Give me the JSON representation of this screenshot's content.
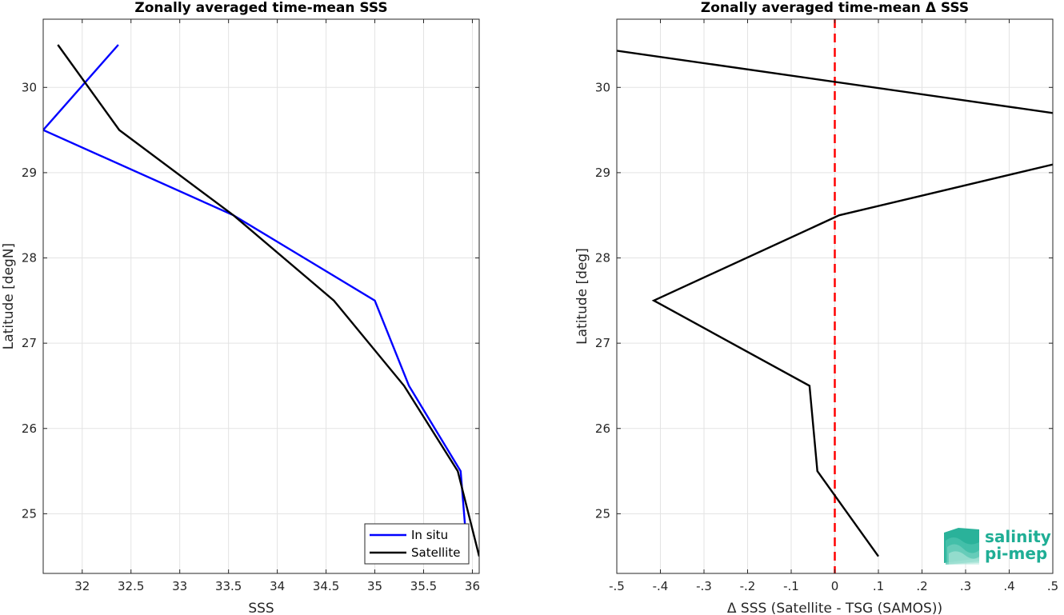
{
  "chart_data": [
    {
      "type": "line",
      "title": "Zonally averaged time-mean SSS",
      "xlabel": "SSS",
      "ylabel": "Latitude [degN]",
      "xlim": [
        31.6,
        36.07
      ],
      "ylim": [
        24.3,
        30.8
      ],
      "xticks": [
        32,
        32.5,
        33,
        33.5,
        34,
        34.5,
        35,
        35.5,
        36
      ],
      "yticks": [
        25,
        26,
        27,
        28,
        29,
        30
      ],
      "grid": true,
      "legend": "bottom-right",
      "series": [
        {
          "name": "In situ",
          "color": "#0000ff",
          "x": [
            32.37,
            31.6,
            33.55,
            35.0,
            35.35,
            35.88,
            35.95
          ],
          "y": [
            30.5,
            29.5,
            28.5,
            27.5,
            26.5,
            25.5,
            24.5
          ]
        },
        {
          "name": "Satellite",
          "color": "#000000",
          "x": [
            31.75,
            32.38,
            33.55,
            34.58,
            35.3,
            35.85,
            36.07
          ],
          "y": [
            30.5,
            29.5,
            28.5,
            27.5,
            26.5,
            25.5,
            24.5
          ]
        }
      ]
    },
    {
      "type": "line",
      "title": "Zonally averaged time-mean Δ SSS",
      "xlabel": "Δ SSS (Satellite - TSG (SAMOS))",
      "ylabel": "Latitude [deg]",
      "xlim": [
        -0.5,
        0.5
      ],
      "ylim": [
        24.3,
        30.8
      ],
      "xticks": [
        -0.5,
        -0.4,
        -0.3,
        -0.2,
        -0.1,
        0,
        0.1,
        0.2,
        0.3,
        0.4,
        0.5
      ],
      "yticks": [
        25,
        26,
        27,
        28,
        29,
        30
      ],
      "grid": true,
      "reference_line": {
        "x": 0,
        "color": "#ff0000",
        "style": "dashed"
      },
      "series": [
        {
          "color": "#000000",
          "x": [
            -0.5,
            0.5
          ],
          "y": [
            30.43,
            29.7
          ]
        },
        {
          "color": "#000000",
          "x": [
            0.52,
            0.01,
            -0.415,
            -0.058,
            -0.04,
            0.1
          ],
          "y": [
            29.12,
            28.5,
            27.5,
            26.5,
            25.5,
            24.5
          ]
        }
      ]
    }
  ],
  "logo": {
    "line1": "salinity",
    "line2": "pi-mep",
    "color": "#1fae95"
  }
}
